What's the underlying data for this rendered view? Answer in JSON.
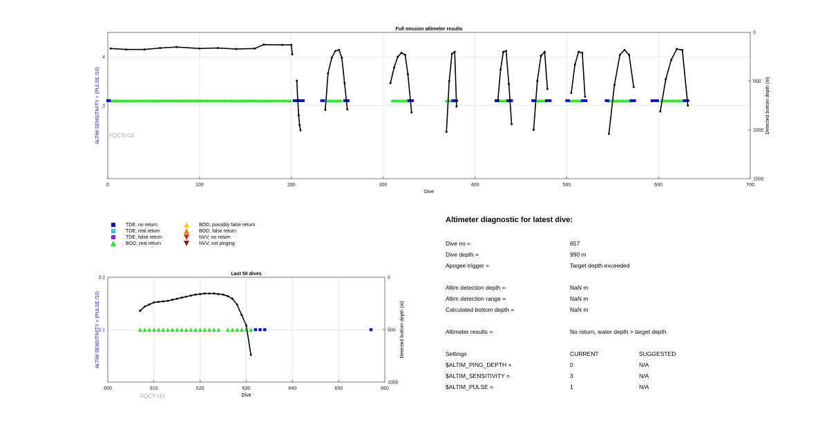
{
  "colors": {
    "axis_left": "#1a1aaa",
    "line": "#000000",
    "tde_no_return": "#1010c8",
    "tde_real_return": "#28c8e8",
    "tde_false_return": "#8a2be2",
    "bod_real_return": "#22e822",
    "bod_possibly_false": "#f0d000",
    "bod_false_return": "#f08000",
    "nvv_no_return": "#e02000",
    "nvv_not_pinging": "#8b1a1a",
    "grid": "#e6e6e6",
    "fqcy": "#aaaaaa"
  },
  "chart_data": [
    {
      "type": "line",
      "title": "Full mission altimeter results",
      "xlabel": "Dive",
      "ylabel_left": "ALTIM SENSITIVITY + (PULSE /10)",
      "ylabel_right": "Detected bottom depth (m)",
      "xlim": [
        0,
        700
      ],
      "ylim_left": [
        1.5,
        4.5
      ],
      "ylim_right": [
        1500,
        0
      ],
      "x_ticks": [
        0,
        100,
        200,
        300,
        400,
        500,
        600,
        700
      ],
      "y_ticks_left": [
        3,
        4
      ],
      "y_ticks_right": [
        0,
        500,
        1000,
        1500
      ],
      "grid": true,
      "annotation": "FQCY=14",
      "depth_series": [
        {
          "name": "shallow profile",
          "x": [
            3,
            20,
            40,
            57,
            75,
            100,
            120,
            140,
            160,
            170,
            190,
            200,
            201
          ],
          "y": [
            165,
            175,
            175,
            160,
            150,
            165,
            160,
            170,
            165,
            125,
            128,
            128,
            225
          ]
        },
        {
          "name": "dives 205-210",
          "x": [
            206,
            207,
            208,
            209,
            210
          ],
          "y": [
            495,
            700,
            850,
            950,
            1005
          ]
        },
        {
          "name": "dives 236-262",
          "x": [
            237,
            240,
            244,
            248,
            252,
            255,
            258,
            261
          ],
          "y": [
            795,
            420,
            260,
            190,
            180,
            260,
            520,
            790
          ]
        },
        {
          "name": "dives 307-332",
          "x": [
            308,
            312,
            316,
            320,
            324,
            327,
            331
          ],
          "y": [
            520,
            360,
            250,
            210,
            230,
            430,
            820
          ]
        },
        {
          "name": "dives 368-380",
          "x": [
            369,
            372,
            375,
            378,
            380
          ],
          "y": [
            1020,
            500,
            220,
            200,
            760
          ]
        },
        {
          "name": "dives 424-440",
          "x": [
            425,
            428,
            431,
            434,
            437,
            440
          ],
          "y": [
            700,
            380,
            200,
            190,
            530,
            940
          ]
        },
        {
          "name": "dives 463-479",
          "x": [
            464,
            468,
            472,
            476,
            479
          ],
          "y": [
            1000,
            500,
            240,
            200,
            580
          ]
        },
        {
          "name": "dives 503-521",
          "x": [
            505,
            509,
            513,
            517,
            520
          ],
          "y": [
            620,
            330,
            200,
            210,
            660
          ]
        },
        {
          "name": "dives 543-574",
          "x": [
            546,
            552,
            558,
            563,
            568,
            573
          ],
          "y": [
            1040,
            540,
            230,
            180,
            230,
            560
          ]
        },
        {
          "name": "dives 600-632",
          "x": [
            602,
            608,
            614,
            620,
            626,
            632
          ],
          "y": [
            810,
            480,
            280,
            170,
            180,
            750
          ]
        }
      ],
      "tde_no_return_runs": [
        [
          0,
          3
        ],
        [
          203,
          213
        ],
        [
          233,
          236
        ],
        [
          258,
          262
        ],
        [
          328,
          332
        ],
        [
          376,
          380
        ],
        [
          423,
          426
        ],
        [
          436,
          440
        ],
        [
          463,
          465
        ],
        [
          478,
          482
        ],
        [
          500,
          502
        ],
        [
          517,
          521
        ],
        [
          543,
          545
        ],
        [
          570,
          574
        ],
        [
          593,
          600
        ],
        [
          628,
          632
        ]
      ],
      "bod_real_return_runs": [
        [
          5,
          199
        ],
        [
          238,
          255
        ],
        [
          310,
          328
        ],
        [
          369,
          378
        ],
        [
          426,
          436
        ],
        [
          466,
          478
        ],
        [
          504,
          517
        ],
        [
          546,
          570
        ],
        [
          603,
          628
        ]
      ]
    },
    {
      "type": "line",
      "title": "Last 50 dives",
      "xlabel": "Dive",
      "ylabel_left": "ALTIM SENSITIVITY + (PULSE /10)",
      "ylabel_right": "Detected bottom depth (m)",
      "xlim": [
        600,
        660
      ],
      "ylim_left": [
        3.0,
        3.2
      ],
      "ylim_right": [
        1000,
        0
      ],
      "x_ticks": [
        600,
        610,
        620,
        630,
        640,
        650,
        660
      ],
      "y_ticks_left": [
        3.1,
        3.2
      ],
      "y_ticks_right": [
        0,
        500,
        1000
      ],
      "grid": true,
      "annotation": "FQCY=14",
      "depth_series": [
        {
          "name": "last 50 depth",
          "x": [
            607,
            608,
            609,
            610,
            611,
            612,
            613,
            614,
            615,
            616,
            617,
            618,
            619,
            620,
            621,
            622,
            623,
            624,
            625,
            626,
            627,
            628,
            629,
            630,
            631
          ],
          "y": [
            320,
            280,
            260,
            240,
            235,
            230,
            225,
            215,
            205,
            195,
            185,
            175,
            165,
            160,
            155,
            155,
            155,
            160,
            165,
            180,
            205,
            260,
            360,
            460,
            740
          ]
        }
      ],
      "bod_real_return_x": [
        607,
        608,
        609,
        610,
        611,
        612,
        613,
        614,
        615,
        616,
        617,
        618,
        619,
        620,
        621,
        622,
        623,
        624,
        626,
        627,
        628,
        629,
        630,
        631
      ],
      "tde_no_return_x": [
        632,
        633,
        634,
        657
      ]
    }
  ],
  "legend": [
    {
      "label": "TDE, no return",
      "marker": "square",
      "color": "#1010c8"
    },
    {
      "label": "TDE, real return",
      "marker": "square",
      "color": "#28c8e8"
    },
    {
      "label": "TDE, false return",
      "marker": "square",
      "color": "#8a2be2"
    },
    {
      "label": "BOD, real return",
      "marker": "triangle-up",
      "color": "#22e822"
    },
    {
      "label": "BOD, possibly false return",
      "marker": "triangle-up",
      "color": "#f0d000"
    },
    {
      "label": "BOD, false return",
      "marker": "triangle-up",
      "color": "#f08000"
    },
    {
      "label": "NVV, no return",
      "marker": "triangle-down",
      "color": "#e02000"
    },
    {
      "label": "NVV, not pinging",
      "marker": "triangle-down",
      "color": "#8b1a1a"
    }
  ],
  "diagnostic": {
    "title": "Altimeter diagnostic for latest dive:",
    "dive_no_label": "Dive no =",
    "dive_no_value": "657",
    "dive_depth_label": "Dive depth =",
    "dive_depth_value": "990 m",
    "apogee_label": "Apogee trigger =",
    "apogee_value": "Target depth exceeded",
    "altim_det_depth_label": "Altim detection depth =",
    "altim_det_depth_value": "NaN m",
    "altim_det_range_label": "Altim detection range =",
    "altim_det_range_value": "NaN m",
    "calc_bottom_label": "Calculated bottom depth =",
    "calc_bottom_value": "NaN m",
    "results_label": "Altimeter results =",
    "results_value": "No return, water depth > target depth",
    "settings_label": "Settings",
    "current_header": "CURRENT",
    "suggested_header": "SUGGESTED",
    "ping_depth_label": "$ALTIM_PING_DEPTH =",
    "ping_depth_current": "0",
    "ping_depth_suggested": "N/A",
    "sensitivity_label": "$ALTIM_SENSITIVITY =",
    "sensitivity_current": "3",
    "sensitivity_suggested": "N/A",
    "pulse_label": "$ALTIM_PULSE =",
    "pulse_current": "1",
    "pulse_suggested": "N/A"
  }
}
